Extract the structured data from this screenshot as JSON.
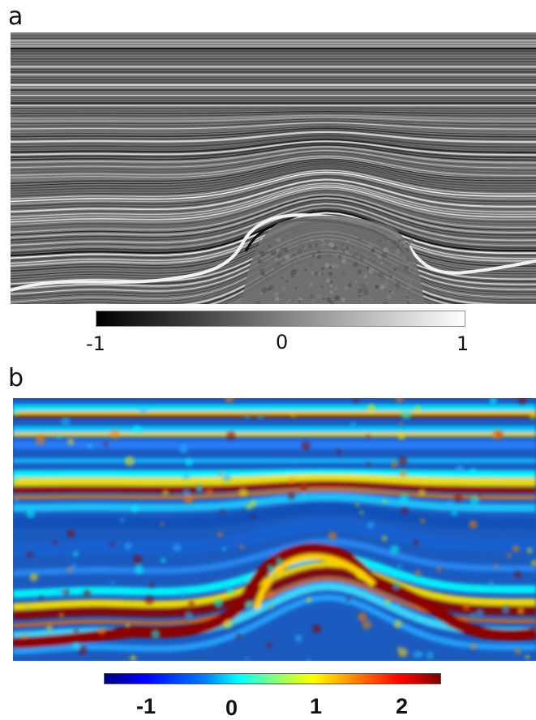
{
  "panel_a": {
    "letter": "a",
    "colorbar": {
      "ticks": [
        "-1",
        "0",
        "1"
      ]
    }
  },
  "panel_b": {
    "letter": "b",
    "colorbar": {
      "ticks": [
        "-1",
        "0",
        "1",
        "2"
      ]
    }
  },
  "colors": {
    "jet_low": "#00007f",
    "jet_mid": "#00ffff",
    "jet_high": "#7f0000",
    "gray_low": "#000000",
    "gray_high": "#ffffff"
  }
}
